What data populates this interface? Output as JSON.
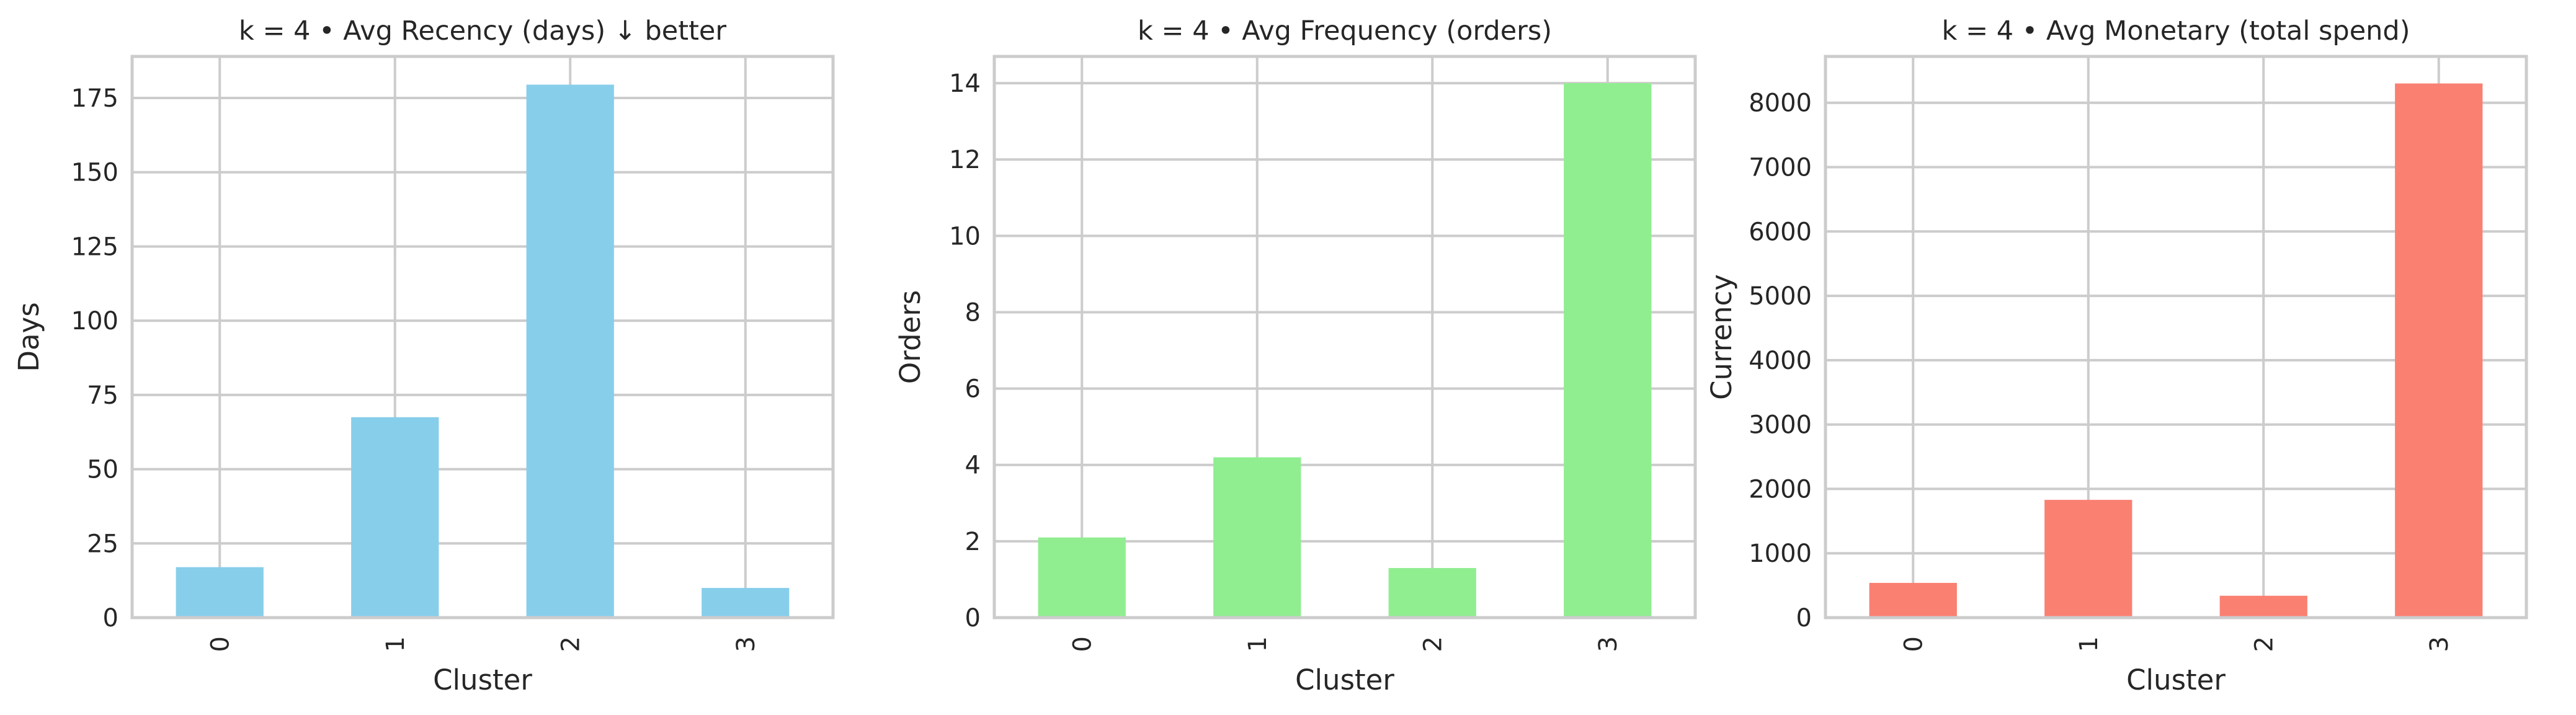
{
  "chart_data": [
    {
      "type": "bar",
      "title": "k = 4 • Avg Recency (days) ↓ better",
      "xlabel": "Cluster",
      "ylabel": "Days",
      "categories": [
        "0",
        "1",
        "2",
        "3"
      ],
      "values": [
        17,
        67.5,
        179.5,
        10
      ],
      "ylim": [
        0,
        189
      ],
      "yticks": [
        0,
        25,
        50,
        75,
        100,
        125,
        150,
        175
      ],
      "color": "#87CEEB",
      "grid": true
    },
    {
      "type": "bar",
      "title": "k = 4 • Avg Frequency (orders)",
      "xlabel": "Cluster",
      "ylabel": "Orders",
      "categories": [
        "0",
        "1",
        "2",
        "3"
      ],
      "values": [
        2.1,
        4.2,
        1.3,
        14.0
      ],
      "ylim": [
        0,
        14.7
      ],
      "yticks": [
        0,
        2,
        4,
        6,
        8,
        10,
        12,
        14
      ],
      "color": "#90EE90",
      "grid": true
    },
    {
      "type": "bar",
      "title": "k = 4 • Avg Monetary (total spend)",
      "xlabel": "Cluster",
      "ylabel": "Currency",
      "categories": [
        "0",
        "1",
        "2",
        "3"
      ],
      "values": [
        540,
        1830,
        340,
        8300
      ],
      "ylim": [
        0,
        8720
      ],
      "yticks": [
        0,
        1000,
        2000,
        3000,
        4000,
        5000,
        6000,
        7000,
        8000
      ],
      "color": "#FA8072",
      "grid": true
    }
  ]
}
